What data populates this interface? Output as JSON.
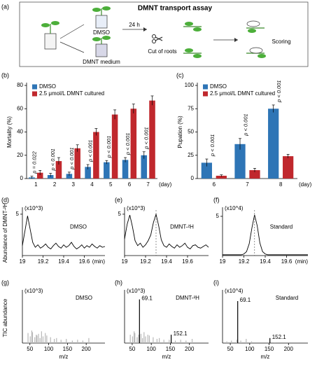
{
  "panel_a": {
    "panel": "(a)",
    "title": "DMNT transport assay",
    "dmso": "DMSO",
    "dmnt": "DMNT medium",
    "time": "24 h",
    "cut": "Cut of roots",
    "scoring": "Scoring"
  },
  "chart_data": [
    {
      "type": "bar",
      "panel": "(b)",
      "ylabel": "Mortality (%)",
      "xlabel": "(day)",
      "categories": [
        "1",
        "2",
        "3",
        "4",
        "5",
        "6",
        "7"
      ],
      "series": [
        {
          "name": "DMSO",
          "color": "#2e75b6",
          "values": [
            1,
            3,
            4,
            10,
            14,
            16,
            20
          ],
          "errors": [
            1,
            1.5,
            1.5,
            2,
            1.5,
            2,
            3
          ]
        },
        {
          "name": "2.5 μmol/L DMNT cultured",
          "color": "#c0282d",
          "values": [
            5,
            15,
            26,
            40,
            55,
            60,
            67
          ],
          "errors": [
            2,
            3,
            3,
            3,
            4,
            4,
            4
          ]
        }
      ],
      "annotations": [
        "p = 0.022",
        "p < 0.001",
        "p < 0.001",
        "p < 0.001",
        "p < 0.001",
        "p < 0.001",
        "p < 0.001"
      ],
      "ylim": [
        0,
        80
      ],
      "yticks": [
        0,
        20,
        40,
        60,
        80
      ]
    },
    {
      "type": "bar",
      "panel": "(c)",
      "ylabel": "Pupation (%)",
      "xlabel": "(day)",
      "categories": [
        "6",
        "7",
        "8"
      ],
      "series": [
        {
          "name": "DMSO",
          "color": "#2e75b6",
          "values": [
            17,
            37,
            75
          ],
          "errors": [
            4,
            6,
            4
          ]
        },
        {
          "name": "2.5 μmol/L DMNT cultured",
          "color": "#c0282d",
          "values": [
            3,
            9,
            24
          ],
          "errors": [
            1,
            2,
            2
          ]
        }
      ],
      "annotations": [
        "p < 0.001",
        "p < 0.001",
        "p < 0.001"
      ],
      "ylim": [
        0,
        100
      ],
      "yticks": [
        0,
        25,
        50,
        75,
        100
      ]
    },
    {
      "type": "line",
      "panel": "(d)",
      "ylabel": "Abundance of DMNT-²H",
      "scale": "(x10^3)",
      "label": "DMSO",
      "xlabel": "(min)",
      "x": [
        19.0,
        19.025,
        19.05,
        19.075,
        19.1,
        19.125,
        19.15,
        19.175,
        19.2,
        19.225,
        19.25,
        19.275,
        19.3,
        19.325,
        19.35,
        19.375,
        19.4,
        19.425,
        19.45,
        19.475,
        19.5,
        19.525,
        19.55,
        19.575,
        19.6,
        19.625,
        19.65,
        19.675,
        19.7,
        19.725,
        19.75,
        19.775,
        19.8
      ],
      "values": [
        1.2,
        3.0,
        4.8,
        3.2,
        1.6,
        1.0,
        1.3,
        0.9,
        1.1,
        1.4,
        1.0,
        0.8,
        1.2,
        1.5,
        1.1,
        0.9,
        1.3,
        1.0,
        1.2,
        1.6,
        1.1,
        0.8,
        1.0,
        1.3,
        0.9,
        1.2,
        1.0,
        1.4,
        1.1,
        0.9,
        1.2,
        1.0,
        1.1
      ],
      "color": "#000000",
      "xlim": [
        19.0,
        19.8
      ],
      "xticks": [
        19.0,
        19.2,
        19.4,
        19.6
      ],
      "ylim": [
        0,
        5.5
      ],
      "yticks": [
        5
      ]
    },
    {
      "type": "line",
      "panel": "(e)",
      "scale": "(x10^3)",
      "label": "DMNT-²H",
      "reference_x": 19.3,
      "x": [
        19.0,
        19.025,
        19.05,
        19.075,
        19.1,
        19.125,
        19.15,
        19.175,
        19.2,
        19.225,
        19.25,
        19.275,
        19.3,
        19.325,
        19.35,
        19.375,
        19.4,
        19.425,
        19.45,
        19.475,
        19.5,
        19.525,
        19.55,
        19.575,
        19.6,
        19.625,
        19.65,
        19.675,
        19.7,
        19.725,
        19.75,
        19.775,
        19.8
      ],
      "values": [
        2.0,
        3.8,
        4.9,
        3.5,
        1.8,
        1.2,
        1.5,
        1.0,
        1.3,
        1.8,
        2.5,
        4.0,
        5.0,
        3.6,
        1.9,
        1.2,
        1.0,
        1.4,
        1.1,
        0.9,
        1.3,
        1.0,
        1.2,
        1.5,
        1.0,
        0.8,
        1.2,
        1.3,
        1.0,
        0.9,
        1.1,
        1.3,
        1.0
      ],
      "color": "#000000",
      "xlim": [
        19.0,
        19.8
      ],
      "xticks": [
        19.0,
        19.2,
        19.4,
        19.6
      ],
      "ylim": [
        0,
        5.5
      ],
      "yticks": [
        5
      ]
    },
    {
      "type": "line",
      "panel": "(f)",
      "scale": "(x10^4)",
      "label": "Standard",
      "reference_x": 19.3,
      "xlabel": "(min)",
      "x": [
        19.0,
        19.025,
        19.05,
        19.075,
        19.1,
        19.125,
        19.15,
        19.175,
        19.2,
        19.225,
        19.25,
        19.275,
        19.3,
        19.325,
        19.35,
        19.375,
        19.4,
        19.425,
        19.45,
        19.475,
        19.5,
        19.525,
        19.55,
        19.575,
        19.6,
        19.625,
        19.65,
        19.675,
        19.7,
        19.725,
        19.75,
        19.775,
        19.8
      ],
      "values": [
        0.1,
        0.1,
        0.1,
        0.1,
        0.1,
        0.1,
        0.1,
        0.1,
        0.2,
        0.5,
        1.5,
        3.5,
        5.2,
        3.8,
        1.6,
        0.5,
        0.2,
        0.1,
        0.1,
        0.1,
        0.1,
        0.1,
        0.1,
        0.1,
        0.1,
        0.1,
        0.1,
        0.1,
        0.1,
        0.1,
        0.1,
        0.1,
        0.1
      ],
      "color": "#000000",
      "xlim": [
        19.0,
        19.8
      ],
      "xticks": [
        19.0,
        19.2,
        19.4,
        19.6
      ],
      "ylim": [
        0,
        5.8
      ],
      "yticks": [
        5
      ]
    },
    {
      "type": "spectrum",
      "panel": "(g)",
      "ylabel": "TIC abundance",
      "scale": "(x10^3)",
      "label": "DMSO",
      "xlabel": "m/z",
      "x": [
        45,
        51,
        55,
        57,
        63,
        67,
        69,
        73,
        77,
        81,
        85,
        91,
        95,
        105,
        115,
        121,
        133,
        147,
        163,
        177,
        191,
        207
      ],
      "values": [
        1.2,
        0.8,
        1.5,
        1.3,
        0.7,
        1.0,
        0.9,
        1.1,
        0.6,
        1.4,
        0.8,
        1.2,
        0.9,
        0.7,
        0.5,
        0.6,
        0.4,
        0.5,
        0.3,
        0.4,
        0.3,
        0.6
      ],
      "color": "#b8b8b8",
      "xlim": [
        30,
        250
      ],
      "xticks": [
        50,
        100,
        150,
        200
      ],
      "ylim": [
        0,
        6
      ]
    },
    {
      "type": "spectrum",
      "panel": "(h)",
      "scale": "(x10^3)",
      "label": "DMNT-²H",
      "xlabel": "m/z",
      "x": [
        45,
        51,
        55,
        57,
        63,
        67,
        69.1,
        73,
        77,
        81,
        85,
        91,
        95,
        105,
        115,
        121,
        133,
        147,
        152.1,
        163,
        177,
        191,
        207
      ],
      "values": [
        1.0,
        0.8,
        1.4,
        1.2,
        0.7,
        1.0,
        5.2,
        1.1,
        0.6,
        1.3,
        0.8,
        1.0,
        0.9,
        0.7,
        0.5,
        0.6,
        0.4,
        0.4,
        1.0,
        0.3,
        0.4,
        0.3,
        0.5
      ],
      "x_labels": [
        null,
        null,
        null,
        null,
        null,
        null,
        "69.1",
        null,
        null,
        null,
        null,
        null,
        null,
        null,
        null,
        null,
        null,
        null,
        "152.1",
        null,
        null,
        null,
        null
      ],
      "color": "#b8b8b8",
      "xlim": [
        30,
        250
      ],
      "xticks": [
        50,
        100,
        150,
        200
      ],
      "ylim": [
        0,
        6
      ]
    },
    {
      "type": "spectrum",
      "panel": "(i)",
      "scale": "(x10^4)",
      "label": "Standard",
      "xlabel": "m/z",
      "x": [
        41,
        53,
        67,
        69.1,
        77,
        91,
        105,
        152.1,
        165
      ],
      "values": [
        0.2,
        0.3,
        0.4,
        5.0,
        0.3,
        0.5,
        0.2,
        0.6,
        0.1
      ],
      "x_labels": [
        null,
        null,
        null,
        "69.1",
        null,
        null,
        null,
        "152.1",
        null
      ],
      "color": "#b8b8b8",
      "xlim": [
        30,
        250
      ],
      "xticks": [
        50,
        100,
        150,
        200
      ],
      "ylim": [
        0,
        6
      ]
    }
  ]
}
